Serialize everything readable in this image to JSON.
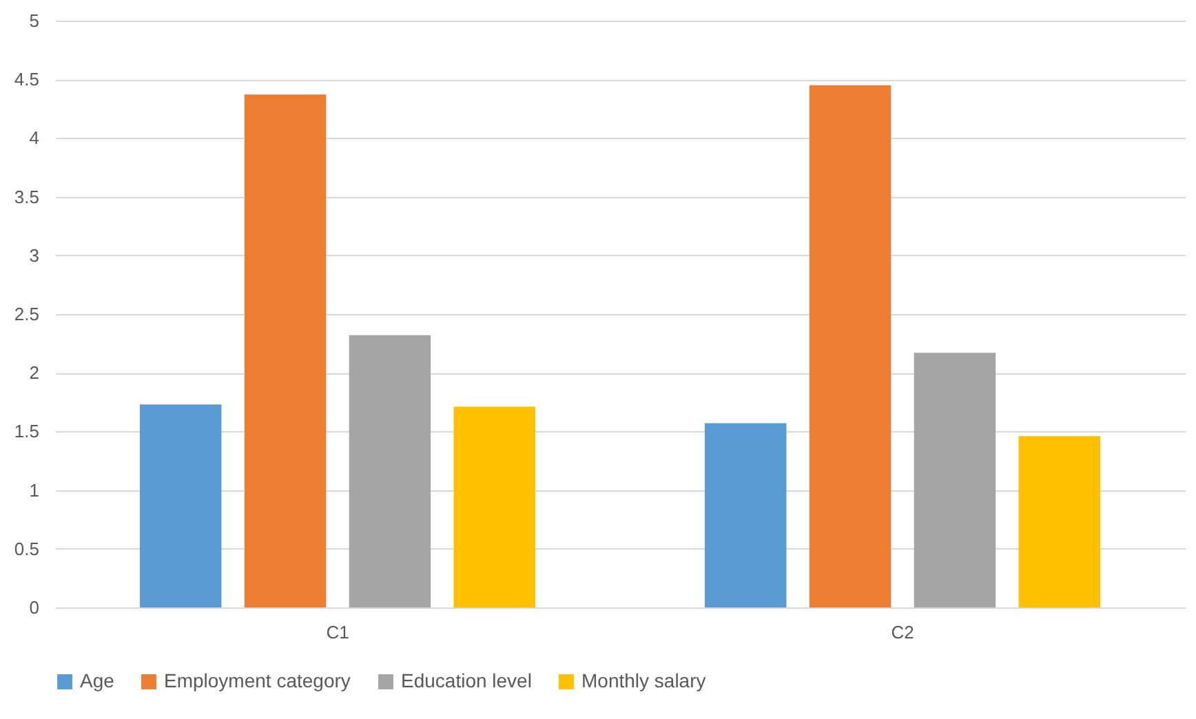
{
  "chart_data": {
    "type": "bar",
    "categories": [
      "C1",
      "C2"
    ],
    "series": [
      {
        "name": "Age",
        "color": "#5b9bd5",
        "values": [
          1.73,
          1.57
        ]
      },
      {
        "name": "Employment category",
        "color": "#ed7d31",
        "values": [
          4.37,
          4.45
        ]
      },
      {
        "name": "Education level",
        "color": "#a5a5a5",
        "values": [
          2.32,
          2.17
        ]
      },
      {
        "name": "Monthly salary",
        "color": "#ffc000",
        "values": [
          1.71,
          1.46
        ]
      }
    ],
    "ylim": [
      0,
      5
    ],
    "yticks": [
      0,
      0.5,
      1,
      1.5,
      2,
      2.5,
      3,
      3.5,
      4,
      4.5,
      5
    ],
    "grid": "y",
    "legend": "bottom"
  }
}
